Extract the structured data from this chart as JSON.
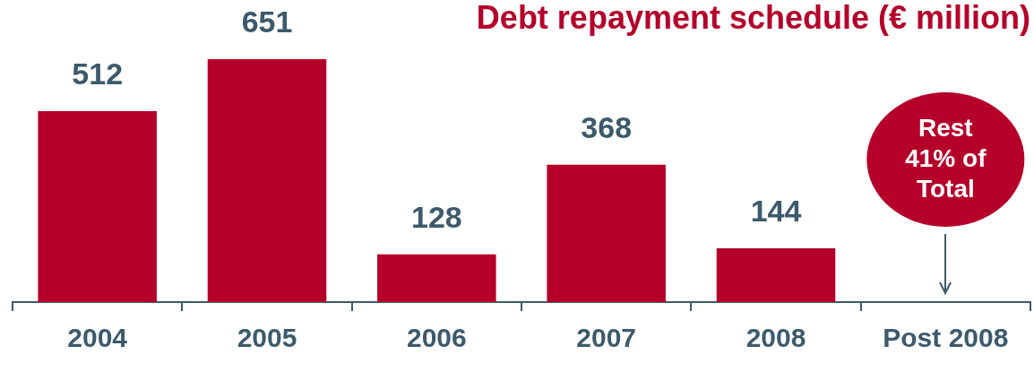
{
  "chart_data": {
    "type": "bar",
    "title": "Debt repayment schedule (€ million)",
    "categories": [
      "2004",
      "2005",
      "2006",
      "2007",
      "2008",
      "Post 2008"
    ],
    "values": [
      512,
      651,
      128,
      368,
      144,
      null
    ],
    "color": "#b5002a",
    "data_labels": true,
    "grid": false,
    "legend": false,
    "tick_labels": "x",
    "annotations": [
      "Rest 41% of Total"
    ]
  }
}
